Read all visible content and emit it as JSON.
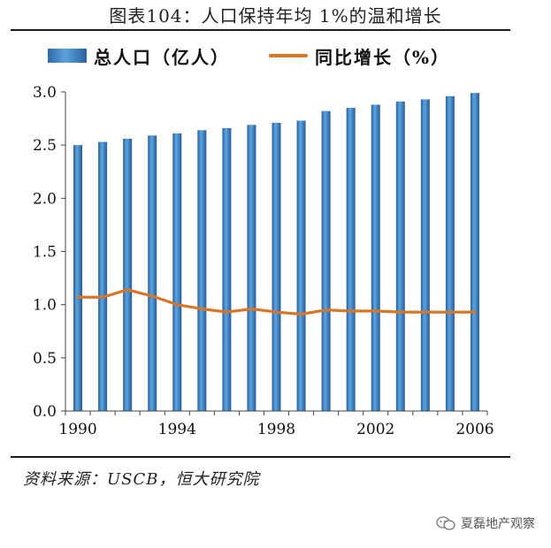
{
  "header": {
    "title": "图表104：人口保持年均 1%的温和增长"
  },
  "legend": {
    "bar_label": "总人口（亿人）",
    "line_label": "同比增长（%）"
  },
  "footer": {
    "source": "资料来源：USCB，恒大研究院",
    "watermark": "夏磊地产观察"
  },
  "colors": {
    "bar": "#3c7fc2",
    "line": "#d87628",
    "axis": "#444444"
  },
  "chart_data": {
    "type": "bar+line",
    "title": "图表104：人口保持年均 1%的温和增长",
    "categories": [
      "1990",
      "1991",
      "1992",
      "1993",
      "1994",
      "1995",
      "1996",
      "1997",
      "1998",
      "1999",
      "2000",
      "2001",
      "2002",
      "2003",
      "2004",
      "2005",
      "2006"
    ],
    "x_tick_labels": [
      "1990",
      "1994",
      "1998",
      "2002",
      "2006"
    ],
    "y_tick_labels": [
      "0.0",
      "0.5",
      "1.0",
      "1.5",
      "2.0",
      "2.5",
      "3.0"
    ],
    "ylim": [
      0,
      3.0
    ],
    "series": [
      {
        "name": "总人口（亿人）",
        "type": "bar",
        "values": [
          2.5,
          2.53,
          2.56,
          2.59,
          2.61,
          2.64,
          2.66,
          2.69,
          2.71,
          2.73,
          2.82,
          2.85,
          2.88,
          2.91,
          2.93,
          2.96,
          2.99
        ]
      },
      {
        "name": "同比增长（%）",
        "type": "line",
        "values": [
          1.07,
          1.07,
          1.14,
          1.08,
          1.0,
          0.96,
          0.93,
          0.96,
          0.93,
          0.91,
          0.95,
          0.94,
          0.94,
          0.93,
          0.93,
          0.93,
          0.93
        ]
      }
    ],
    "legend_position": "top"
  }
}
